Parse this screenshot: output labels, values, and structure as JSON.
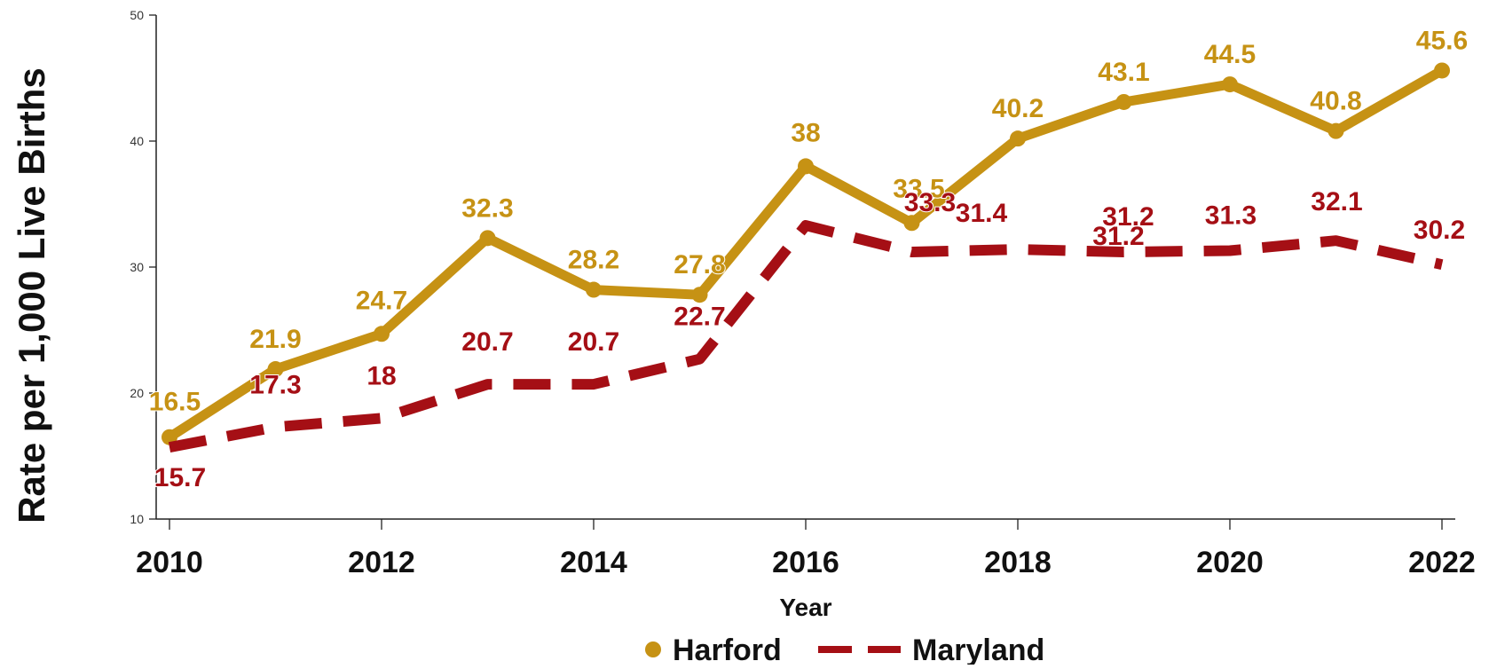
{
  "chart_data": {
    "type": "line",
    "title": "",
    "xlabel": "Year",
    "ylabel": "Rate per 1,000 Live Births",
    "x": [
      2010,
      2011,
      2012,
      2013,
      2014,
      2015,
      2016,
      2017,
      2018,
      2019,
      2020,
      2021,
      2022
    ],
    "x_ticks": [
      "2010",
      "2012",
      "2014",
      "2016",
      "2018",
      "2020",
      "2022"
    ],
    "y_ticks": [
      "10",
      "20",
      "30",
      "40",
      "50"
    ],
    "ylim": [
      10,
      50
    ],
    "grid": false,
    "legend_position": "bottom",
    "series": [
      {
        "name": "Harford",
        "color": "#C69214",
        "style": "solid",
        "marker": "circle",
        "values": [
          16.5,
          21.9,
          24.7,
          32.3,
          28.2,
          27.8,
          38,
          33.5,
          40.2,
          43.1,
          44.5,
          40.8,
          45.6
        ],
        "labels": [
          "16.5",
          "21.9",
          "24.7",
          "32.3",
          "28.2",
          "27.8",
          "38",
          "33.5",
          "40.2",
          "43.1",
          "44.5",
          "40.8",
          "45.6"
        ]
      },
      {
        "name": "Maryland",
        "color": "#A50F15",
        "style": "dashed",
        "marker": "none",
        "values": [
          15.7,
          17.3,
          18,
          20.7,
          20.7,
          22.7,
          33.3,
          31.2,
          31.4,
          31.2,
          31.3,
          32.1,
          30.2
        ],
        "labels": [
          "15.7",
          "17.3",
          "18",
          "20.7",
          "20.7",
          "22.7",
          "33.3",
          "31.2",
          "31.4",
          "31.2",
          "31.3",
          "32.1",
          "30.2"
        ]
      }
    ]
  }
}
